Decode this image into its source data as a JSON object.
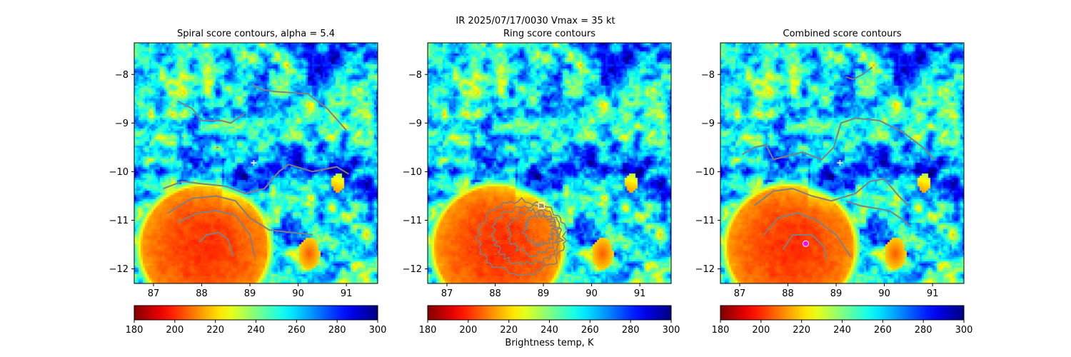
{
  "figure_title": "IR  2025/07/17/0030    Vmax = 35 kt",
  "colorbar_label": "Brightness temp, K",
  "chart_data": [
    {
      "type": "heatmap",
      "title": "Spiral score contours, alpha =  5.4",
      "xlim": [
        86.6,
        91.65
      ],
      "ylim": [
        -12.3,
        -7.35
      ],
      "xticks": [
        "87",
        "88",
        "89",
        "90",
        "91"
      ],
      "yticks": [
        "−8",
        "−9",
        "−10",
        "−11",
        "−12"
      ],
      "colorbar": {
        "cmap": "jet_r",
        "range": [
          180,
          300
        ],
        "ticks": [
          "180",
          "200",
          "220",
          "240",
          "260",
          "280",
          "300"
        ]
      },
      "marker": {
        "symbol": "+",
        "color": "#ffffff",
        "x": 89.08,
        "y": -9.82
      },
      "contour_color": "#808080"
    },
    {
      "type": "heatmap",
      "title": "Ring score contours",
      "xlim": [
        86.6,
        91.65
      ],
      "ylim": [
        -12.3,
        -7.35
      ],
      "xticks": [
        "87",
        "88",
        "89",
        "90",
        "91"
      ],
      "yticks": [
        "−8",
        "−9",
        "−10",
        "−11",
        "−12"
      ],
      "colorbar": {
        "cmap": "jet_r",
        "range": [
          180,
          300
        ],
        "ticks": [
          "180",
          "200",
          "220",
          "240",
          "260",
          "280",
          "300"
        ]
      },
      "marker": {
        "symbol": "square",
        "color": "#ffffff",
        "x": 88.96,
        "y": -10.7
      },
      "contour_color": "#808080"
    },
    {
      "type": "heatmap",
      "title": "Combined score contours",
      "xlim": [
        86.6,
        91.65
      ],
      "ylim": [
        -12.3,
        -7.35
      ],
      "xticks": [
        "87",
        "88",
        "89",
        "90",
        "91"
      ],
      "yticks": [
        "−8",
        "−9",
        "−10",
        "−11",
        "−12"
      ],
      "colorbar": {
        "cmap": "jet_r",
        "range": [
          180,
          300
        ],
        "ticks": [
          "180",
          "200",
          "220",
          "240",
          "260",
          "280",
          "300"
        ]
      },
      "marker": {
        "symbol": "+",
        "color": "#ffffff",
        "x": 89.08,
        "y": -9.82
      },
      "marker2": {
        "symbol": "circle",
        "color": "#ff00ff",
        "x": 88.37,
        "y": -11.48
      },
      "contour_color": "#808080"
    }
  ]
}
